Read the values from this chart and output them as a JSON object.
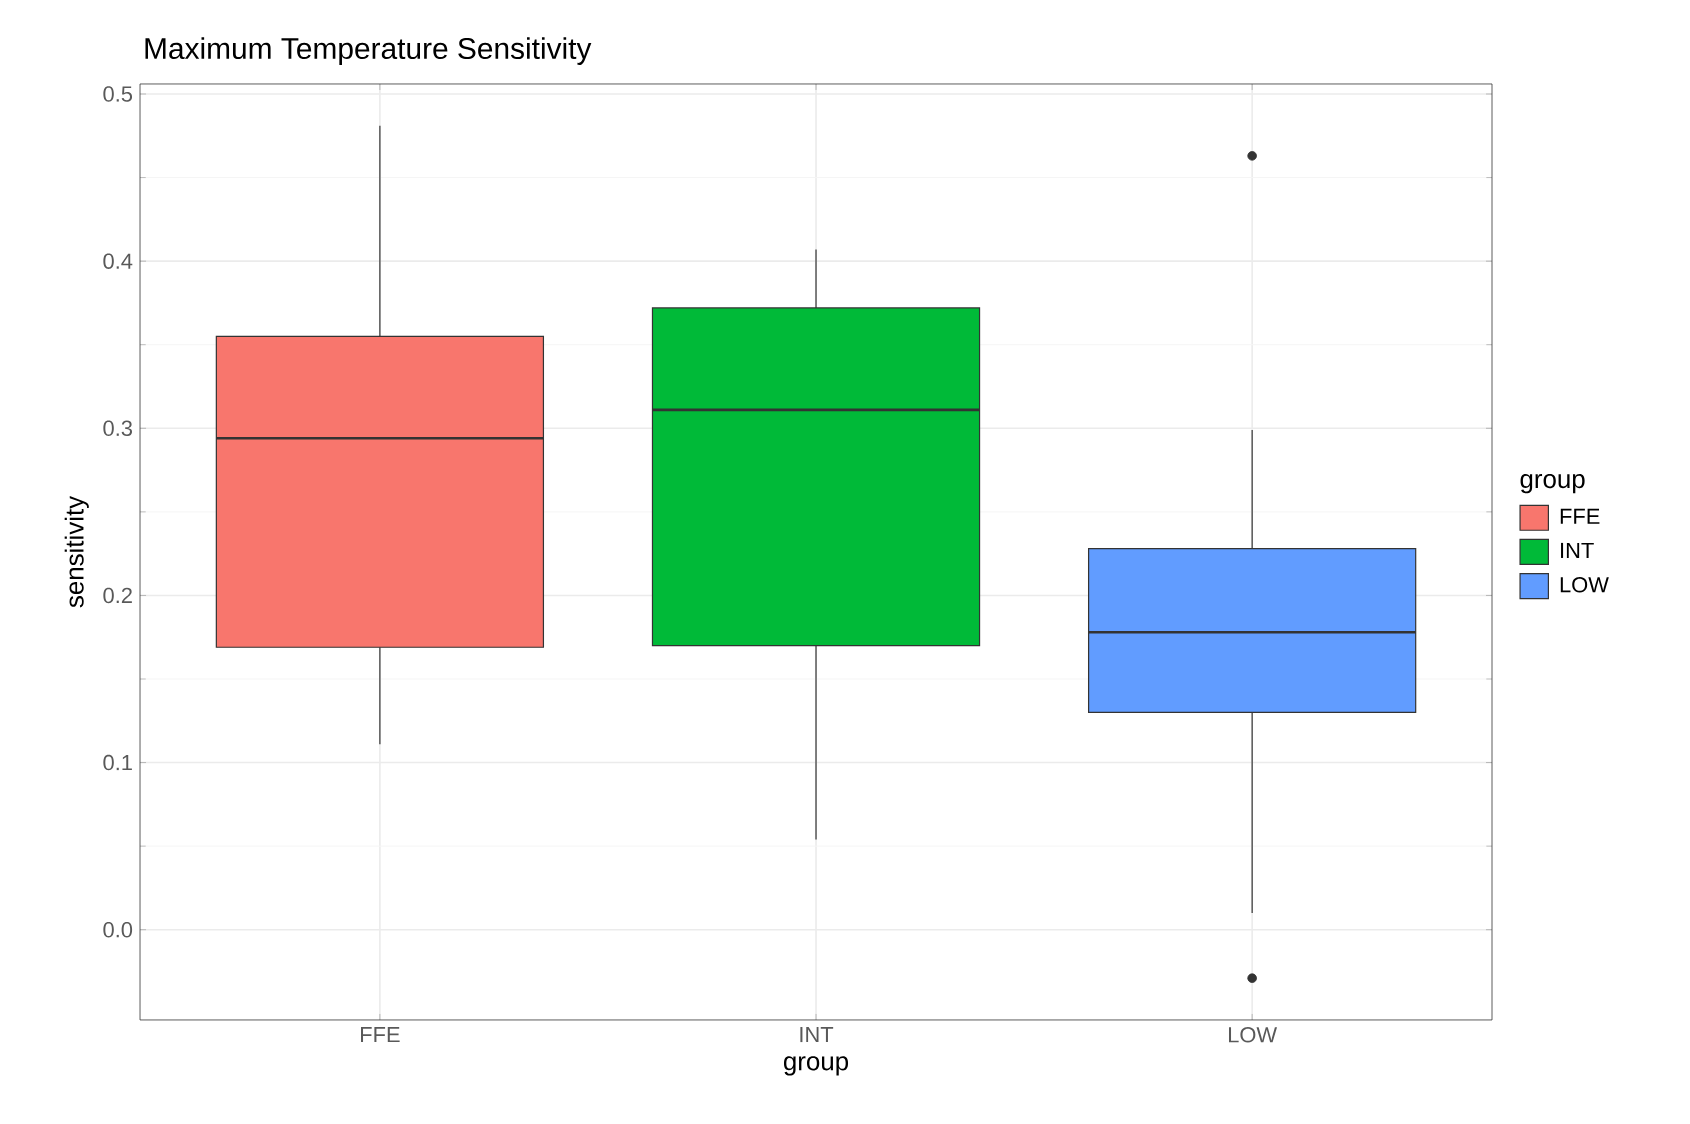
{
  "chart_data": {
    "type": "box",
    "title": "Maximum Temperature Sensitivity",
    "xlabel": "group",
    "ylabel": "sensitivity",
    "legend_title": "group",
    "categories": [
      "FFE",
      "INT",
      "LOW"
    ],
    "series": [
      {
        "name": "FFE",
        "color": "#f8766d",
        "boxes": [
          {
            "low": 0.111,
            "q1": 0.169,
            "median": 0.294,
            "q3": 0.355,
            "high": 0.481
          },
          null,
          null
        ]
      },
      {
        "name": "INT",
        "color": "#00ba38",
        "boxes": [
          null,
          {
            "low": 0.054,
            "q1": 0.17,
            "median": 0.311,
            "q3": 0.372,
            "high": 0.407
          },
          null
        ]
      },
      {
        "name": "LOW",
        "color": "#619cff",
        "boxes": [
          null,
          null,
          {
            "low": 0.01,
            "q1": 0.13,
            "median": 0.178,
            "q3": 0.228,
            "high": 0.299,
            "outliers": [
              0.463,
              -0.029
            ]
          }
        ]
      }
    ],
    "ylim": [
      -0.054,
      0.506
    ],
    "yticks": [
      {
        "value": 0,
        "label": "0.0"
      },
      0.1,
      0.2,
      0.3,
      0.4,
      0.5
    ],
    "grid": true,
    "legend": "right"
  }
}
